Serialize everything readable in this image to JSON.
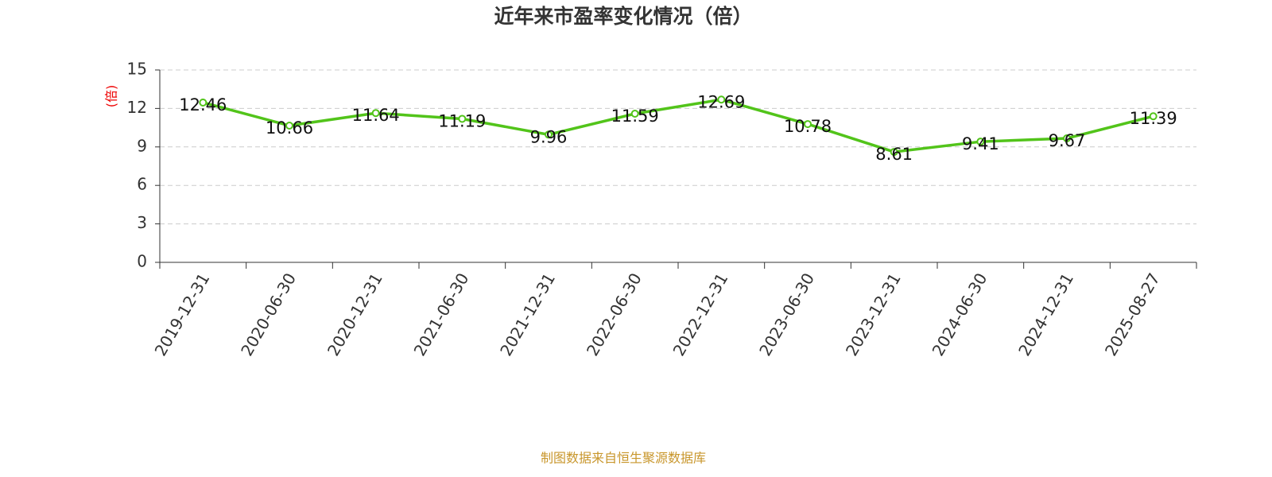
{
  "chart_data": {
    "type": "line",
    "title": "近年来市盈率变化情况（倍）",
    "y_label": "(倍)",
    "categories": [
      "2019-12-31",
      "2020-06-30",
      "2020-12-31",
      "2021-06-30",
      "2021-12-31",
      "2022-06-30",
      "2022-12-31",
      "2023-06-30",
      "2023-12-31",
      "2024-06-30",
      "2024-12-31",
      "2025-08-27"
    ],
    "values": [
      12.46,
      10.66,
      11.64,
      11.19,
      9.96,
      11.59,
      12.69,
      10.78,
      8.61,
      9.41,
      9.67,
      11.39
    ],
    "color": "#52c41a",
    "ylim": [
      0,
      15
    ],
    "yticks": [
      0,
      3,
      6,
      9,
      12,
      15
    ],
    "grid": true,
    "source": "制图数据来自恒生聚源数据库"
  }
}
